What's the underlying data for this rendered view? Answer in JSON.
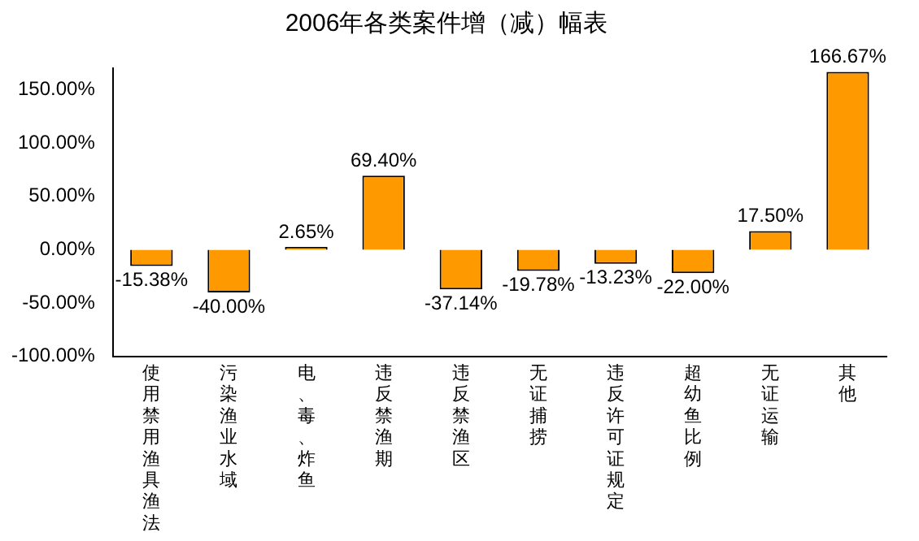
{
  "chart_data": {
    "type": "bar",
    "title": "2006年各类案件增（减）幅表",
    "categories": [
      "使用禁用渔具渔法",
      "污染渔业水域",
      "电、毒、炸鱼",
      "违反禁渔期",
      "违反禁渔区",
      "无证捕捞",
      "违反许可证规定",
      "超幼鱼比例",
      "无证运输",
      "其他"
    ],
    "values": [
      -15.38,
      -40.0,
      2.65,
      69.4,
      -37.14,
      -19.78,
      -13.23,
      -22.0,
      17.5,
      166.67
    ],
    "value_labels": [
      "-15.38%",
      "-40.00%",
      "2.65%",
      "69.40%",
      "-37.14%",
      "-19.78%",
      "-13.23%",
      "-22.00%",
      "17.50%",
      "166.67%"
    ],
    "color": "#ff9900",
    "ylim": [
      -100,
      170
    ],
    "yticks": [
      {
        "value": -100,
        "label": "-100.00%"
      },
      {
        "value": -50,
        "label": "-50.00%"
      },
      {
        "value": 0,
        "label": "0.00%"
      },
      {
        "value": 50,
        "label": "50.00%"
      },
      {
        "value": 100,
        "label": "100.00%"
      },
      {
        "value": 150,
        "label": "150.00%"
      }
    ],
    "grid": false,
    "legend": false
  }
}
